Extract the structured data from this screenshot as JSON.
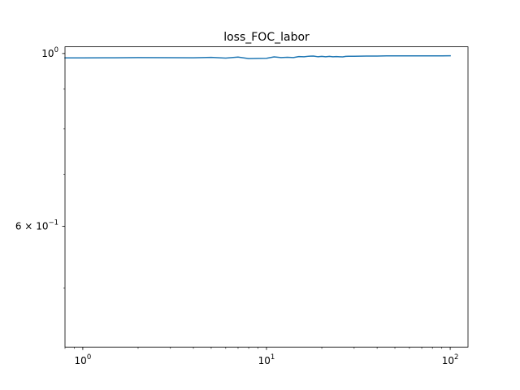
{
  "chart_data": {
    "type": "line",
    "title": "loss_FOC_labor",
    "xlabel": "",
    "ylabel": "",
    "xscale": "log",
    "yscale": "log",
    "xlim": [
      0.8,
      125
    ],
    "ylim": [
      0.42,
      1.02
    ],
    "grid": false,
    "legend": "none",
    "line_color": "#1f77b4",
    "x_major_ticks": [
      {
        "value": 1,
        "label": "10⁰",
        "base": "10",
        "exp": "0"
      },
      {
        "value": 10,
        "label": "10¹",
        "base": "10",
        "exp": "1"
      },
      {
        "value": 100,
        "label": "10²",
        "base": "10",
        "exp": "2"
      }
    ],
    "y_major_ticks": [
      {
        "value": 1.0,
        "label": "10⁰",
        "prefix": "",
        "base": "10",
        "exp": "0"
      },
      {
        "value": 0.6,
        "label": "6×10⁻¹",
        "prefix": "6 × ",
        "base": "10",
        "exp": "−1"
      }
    ],
    "y_minor_ticks": [
      0.9,
      0.8,
      0.7,
      0.5
    ],
    "series": [
      {
        "x": [
          0.8,
          1,
          1.5,
          2,
          3,
          4,
          5,
          6,
          7,
          8,
          9,
          10,
          11,
          12,
          13,
          14,
          15,
          16,
          17,
          18,
          19,
          20,
          21,
          22,
          23,
          24,
          25,
          26,
          27,
          28,
          30,
          35,
          40,
          45,
          50,
          60,
          70,
          80,
          90,
          100
        ],
        "y": [
          0.987,
          0.987,
          0.9875,
          0.988,
          0.9878,
          0.9875,
          0.9885,
          0.9865,
          0.9895,
          0.985,
          0.9855,
          0.986,
          0.99,
          0.988,
          0.989,
          0.988,
          0.991,
          0.9905,
          0.992,
          0.9925,
          0.9905,
          0.9915,
          0.9905,
          0.9915,
          0.9905,
          0.991,
          0.9905,
          0.99,
          0.9915,
          0.992,
          0.992,
          0.9925,
          0.9925,
          0.993,
          0.993,
          0.993,
          0.993,
          0.9932,
          0.9932,
          0.9933
        ]
      }
    ]
  }
}
